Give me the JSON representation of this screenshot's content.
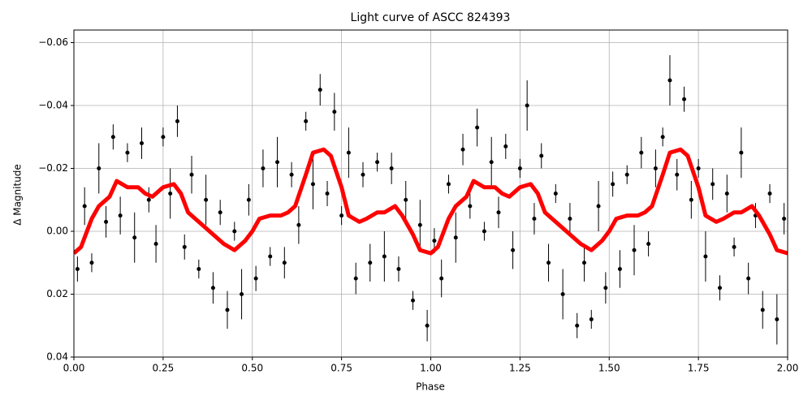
{
  "chart_data": {
    "type": "scatter",
    "title": "Light curve of ASCC 824393",
    "xlabel": "Phase",
    "ylabel": "Δ Magnitude",
    "xlim": [
      0,
      2
    ],
    "ylim": [
      -0.064,
      0.04
    ],
    "y_inverted": true,
    "grid": true,
    "xticks": [
      {
        "value": 0,
        "label": "0.00"
      },
      0.25,
      {
        "value": 0.5,
        "label": "0.50"
      },
      0.75,
      {
        "value": 1,
        "label": "1.00"
      },
      1.25,
      {
        "value": 1.5,
        "label": "1.50"
      },
      1.75,
      {
        "value": 2,
        "label": "2.00"
      }
    ],
    "yticks": [
      {
        "value": -0.06,
        "label": "−0.06"
      },
      {
        "value": -0.04,
        "label": "−0.04"
      },
      {
        "value": -0.02,
        "label": "−0.02"
      },
      {
        "value": 0,
        "label": "0.00"
      },
      0.02,
      0.04
    ],
    "series": [
      {
        "kind": "errorbar",
        "color": "#000000",
        "x": [
          0.01,
          0.03,
          0.05,
          0.07,
          0.09,
          0.11,
          0.13,
          0.15,
          0.17,
          0.19,
          0.21,
          0.23,
          0.25,
          0.27,
          0.29,
          0.31,
          0.33,
          0.35,
          0.37,
          0.39,
          0.41,
          0.43,
          0.45,
          0.47,
          0.49,
          0.51,
          0.53,
          0.55,
          0.57,
          0.59,
          0.61,
          0.63,
          0.65,
          0.67,
          0.69,
          0.71,
          0.73,
          0.75,
          0.77,
          0.79,
          0.81,
          0.83,
          0.85,
          0.87,
          0.89,
          0.91,
          0.93,
          0.95,
          0.97,
          0.99,
          1.01,
          1.03,
          1.05,
          1.07,
          1.09,
          1.11,
          1.13,
          1.15,
          1.17,
          1.19,
          1.21,
          1.23,
          1.25,
          1.27,
          1.29,
          1.31,
          1.33,
          1.35,
          1.37,
          1.39,
          1.41,
          1.43,
          1.45,
          1.47,
          1.49,
          1.51,
          1.53,
          1.55,
          1.57,
          1.59,
          1.61,
          1.63,
          1.65,
          1.67,
          1.69,
          1.71,
          1.73,
          1.75,
          1.77,
          1.79,
          1.81,
          1.83,
          1.85,
          1.87,
          1.89,
          1.91,
          1.93,
          1.95,
          1.97,
          1.99
        ],
        "values": [
          0.012,
          -0.008,
          0.01,
          -0.02,
          -0.003,
          -0.03,
          -0.005,
          -0.025,
          0.002,
          -0.028,
          -0.01,
          0.004,
          -0.03,
          -0.012,
          -0.035,
          0.005,
          -0.018,
          0.012,
          -0.01,
          0.018,
          -0.006,
          0.025,
          0.0,
          0.02,
          -0.01,
          0.015,
          -0.02,
          0.008,
          -0.022,
          0.01,
          -0.018,
          -0.002,
          -0.035,
          -0.015,
          -0.045,
          -0.012,
          -0.038,
          -0.005,
          -0.025,
          0.015,
          -0.018,
          0.01,
          -0.022,
          0.008,
          -0.02,
          0.012,
          -0.01,
          0.022,
          -0.002,
          0.03,
          0.003,
          0.015,
          -0.015,
          0.002,
          -0.026,
          -0.008,
          -0.033,
          0.0,
          -0.022,
          -0.006,
          -0.027,
          0.006,
          -0.02,
          -0.04,
          -0.004,
          -0.024,
          0.01,
          -0.012,
          0.02,
          -0.004,
          0.03,
          0.01,
          0.028,
          -0.008,
          0.018,
          -0.015,
          0.012,
          -0.018,
          0.006,
          -0.025,
          0.004,
          -0.02,
          -0.03,
          -0.048,
          -0.018,
          -0.042,
          -0.01,
          -0.02,
          0.008,
          -0.015,
          0.018,
          -0.012,
          0.005,
          -0.025,
          0.015,
          -0.005,
          0.025,
          -0.012,
          0.028,
          -0.004
        ],
        "errors": [
          0.004,
          0.006,
          0.003,
          0.008,
          0.005,
          0.004,
          0.006,
          0.003,
          0.008,
          0.005,
          0.004,
          0.006,
          0.003,
          0.008,
          0.005,
          0.004,
          0.006,
          0.003,
          0.008,
          0.005,
          0.004,
          0.006,
          0.003,
          0.008,
          0.005,
          0.004,
          0.006,
          0.003,
          0.008,
          0.005,
          0.004,
          0.006,
          0.003,
          0.008,
          0.005,
          0.004,
          0.006,
          0.003,
          0.008,
          0.005,
          0.004,
          0.006,
          0.003,
          0.008,
          0.005,
          0.004,
          0.006,
          0.003,
          0.008,
          0.005,
          0.004,
          0.006,
          0.003,
          0.008,
          0.005,
          0.004,
          0.006,
          0.003,
          0.008,
          0.005,
          0.004,
          0.006,
          0.003,
          0.008,
          0.005,
          0.004,
          0.006,
          0.003,
          0.008,
          0.005,
          0.004,
          0.006,
          0.003,
          0.008,
          0.005,
          0.004,
          0.006,
          0.003,
          0.008,
          0.005,
          0.004,
          0.006,
          0.003,
          0.008,
          0.005,
          0.004,
          0.006,
          0.003,
          0.008,
          0.005,
          0.004,
          0.006,
          0.003,
          0.008,
          0.005,
          0.004,
          0.006,
          0.003,
          0.008,
          0.005
        ]
      },
      {
        "kind": "line",
        "color": "#ff0000",
        "x": [
          0,
          0.02,
          0.05,
          0.07,
          0.1,
          0.12,
          0.15,
          0.18,
          0.2,
          0.22,
          0.25,
          0.28,
          0.3,
          0.32,
          0.35,
          0.38,
          0.4,
          0.42,
          0.45,
          0.48,
          0.5,
          0.52,
          0.55,
          0.58,
          0.6,
          0.62,
          0.65,
          0.67,
          0.7,
          0.72,
          0.75,
          0.77,
          0.8,
          0.82,
          0.85,
          0.87,
          0.9,
          0.92,
          0.95,
          0.97,
          1,
          1.02,
          1.05,
          1.07,
          1.1,
          1.12,
          1.15,
          1.18,
          1.2,
          1.22,
          1.25,
          1.28,
          1.3,
          1.32,
          1.35,
          1.38,
          1.4,
          1.42,
          1.45,
          1.48,
          1.5,
          1.52,
          1.55,
          1.58,
          1.6,
          1.62,
          1.65,
          1.67,
          1.7,
          1.72,
          1.75,
          1.77,
          1.8,
          1.82,
          1.85,
          1.87,
          1.9,
          1.92,
          1.95,
          1.97,
          2
        ],
        "values": [
          0.007,
          0.005,
          -0.004,
          -0.008,
          -0.011,
          -0.016,
          -0.014,
          -0.014,
          -0.012,
          -0.011,
          -0.014,
          -0.015,
          -0.012,
          -0.006,
          -0.003,
          0,
          0.002,
          0.004,
          0.006,
          0.003,
          0,
          -0.004,
          -0.005,
          -0.005,
          -0.006,
          -0.008,
          -0.018,
          -0.025,
          -0.026,
          -0.024,
          -0.014,
          -0.005,
          -0.003,
          -0.004,
          -0.006,
          -0.006,
          -0.008,
          -0.005,
          0.001,
          0.006,
          0.007,
          0.005,
          -0.004,
          -0.008,
          -0.011,
          -0.016,
          -0.014,
          -0.014,
          -0.012,
          -0.011,
          -0.014,
          -0.015,
          -0.012,
          -0.006,
          -0.003,
          0,
          0.002,
          0.004,
          0.006,
          0.003,
          0,
          -0.004,
          -0.005,
          -0.005,
          -0.006,
          -0.008,
          -0.018,
          -0.025,
          -0.026,
          -0.024,
          -0.014,
          -0.005,
          -0.003,
          -0.004,
          -0.006,
          -0.006,
          -0.008,
          -0.005,
          0.001,
          0.006,
          0.007
        ]
      }
    ]
  }
}
